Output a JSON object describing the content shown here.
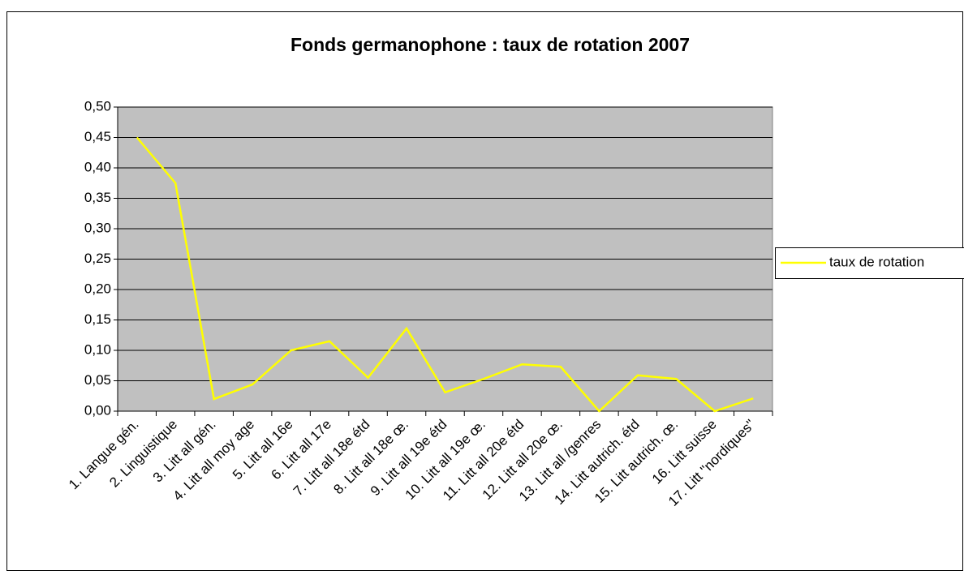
{
  "chart_data": {
    "type": "line",
    "title": "Fonds germanophone : taux de rotation 2007",
    "categories": [
      "1. Langue gén.",
      "2. Linguistique",
      "3. Litt all gén.",
      "4. Litt all moy age",
      "5. Litt all 16e",
      "6. Litt all 17e",
      "7. Litt all 18e étd",
      "8. Litt all 18e œ.",
      "9. Litt all 19e étd",
      "10. Litt all 19e œ.",
      "11. Litt all 20e étd",
      "12. Litt all 20e œ.",
      "13. Litt all /genres",
      "14. Litt autrich. étd",
      "15. Litt autrich. œ.",
      "16. Litt suisse",
      "17. Litt \"nordiques\""
    ],
    "series": [
      {
        "name": "taux de rotation",
        "color": "#FFFF00",
        "values": [
          0.45,
          0.375,
          0.02,
          0.044,
          0.1,
          0.115,
          0.055,
          0.136,
          0.031,
          0.053,
          0.077,
          0.073,
          0,
          0.059,
          0.053,
          0,
          0.021
        ]
      }
    ],
    "ylim": [
      0,
      0.5
    ],
    "yticks": [
      {
        "value": 0,
        "label": "0,00"
      },
      {
        "value": 0.05,
        "label": "0,05"
      },
      {
        "value": 0.1,
        "label": "0,10"
      },
      {
        "value": 0.15,
        "label": "0,15"
      },
      {
        "value": 0.2,
        "label": "0,20"
      },
      {
        "value": 0.25,
        "label": "0,25"
      },
      {
        "value": 0.3,
        "label": "0,30"
      },
      {
        "value": 0.35,
        "label": "0,35"
      },
      {
        "value": 0.4,
        "label": "0,40"
      },
      {
        "value": 0.45,
        "label": "0,45"
      },
      {
        "value": 0.5,
        "label": "0,50"
      }
    ],
    "grid": true,
    "legend": "right"
  }
}
